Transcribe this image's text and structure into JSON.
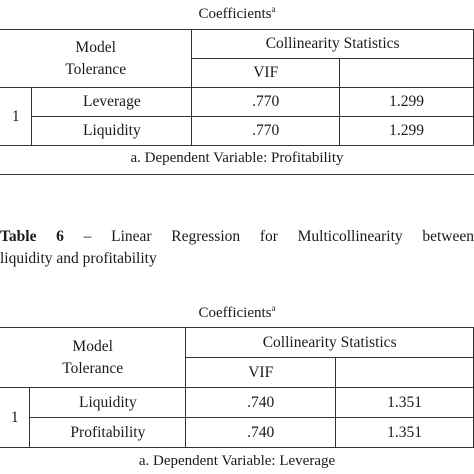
{
  "table_a": {
    "caption": "Coefficients",
    "caption_sup": "a",
    "model_label": "Model",
    "tolerance_label": "Tolerance",
    "group_header": "Collinearity Statistics",
    "vif_label": "VIF",
    "model_number": "1",
    "rows": [
      {
        "var": "Leverage",
        "tol": ".770",
        "vif": "1.299"
      },
      {
        "var": "Liquidity",
        "tol": ".770",
        "vif": "1.299"
      }
    ],
    "footnote": "a. Dependent Variable: Profitability"
  },
  "table6_title": {
    "label": "Table 6",
    "text_line1": "– Linear Regression for Multicollinearity between",
    "text_line2": "liquidity and profitability"
  },
  "table_b": {
    "caption": "Coefficients",
    "caption_sup": "a",
    "model_label": "Model",
    "tolerance_label": "Tolerance",
    "group_header": "Collinearity Statistics",
    "vif_label": "VIF",
    "model_number": "1",
    "rows": [
      {
        "var": "Liquidity",
        "tol": ".740",
        "vif": "1.351"
      },
      {
        "var": "Profitability",
        "tol": ".740",
        "vif": "1.351"
      }
    ],
    "footnote": "a. Dependent Variable: Leverage"
  }
}
